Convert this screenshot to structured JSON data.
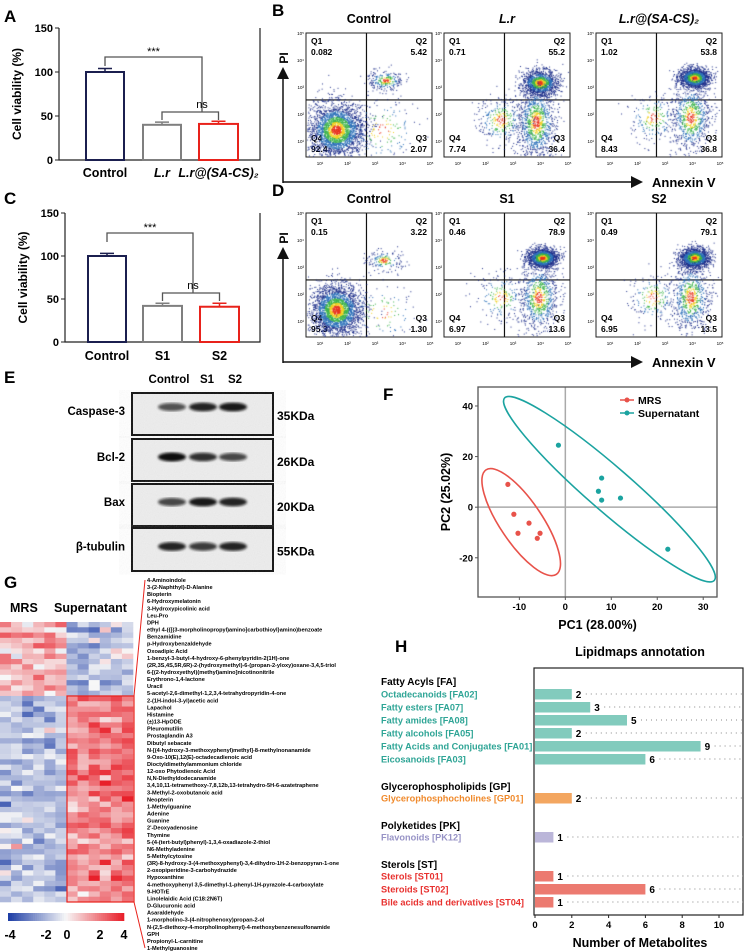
{
  "panel_labels": [
    "A",
    "B",
    "C",
    "D",
    "E",
    "F",
    "G",
    "H"
  ],
  "chart_data": [
    {
      "type": "bar",
      "ylabel": "Cell viability (%)",
      "ylim": [
        0,
        150
      ],
      "yticks": [
        0,
        50,
        100,
        150
      ],
      "categories": [
        "Control",
        "L.r",
        "L.r@(SA-CS)₂"
      ],
      "values": [
        100,
        40,
        41
      ],
      "errors": [
        4,
        3,
        3
      ],
      "colors": [
        "#1b1f4f",
        "#7f7f7f",
        "#e8221b"
      ],
      "significance": [
        "***",
        "ns"
      ]
    },
    {
      "type": "scatter",
      "subtype": "flow-cytometry",
      "xlabel": "Annexin V",
      "ylabel": "PI",
      "axis_ticks": [
        "10¹",
        "10²",
        "10³",
        "10⁴",
        "10⁵"
      ],
      "quadrant_names": [
        "Q1",
        "Q2",
        "Q3",
        "Q4"
      ],
      "samples": [
        {
          "name": "Control",
          "Q1": "0.082",
          "Q2": "5.42",
          "Q3": "2.07",
          "Q4": "92.4"
        },
        {
          "name": "L.r",
          "Q1": "0.71",
          "Q2": "55.2",
          "Q3": "36.4",
          "Q4": "7.74"
        },
        {
          "name": "L.r@(SA-CS)₂",
          "Q1": "1.02",
          "Q2": "53.8",
          "Q3": "36.8",
          "Q4": "8.43"
        }
      ]
    },
    {
      "type": "bar",
      "ylabel": "Cell viability (%)",
      "ylim": [
        0,
        150
      ],
      "yticks": [
        0,
        50,
        100,
        150
      ],
      "categories": [
        "Control",
        "S1",
        "S2"
      ],
      "values": [
        100,
        42,
        41
      ],
      "errors": [
        3,
        3,
        4
      ],
      "colors": [
        "#1b1f4f",
        "#7f7f7f",
        "#e8221b"
      ],
      "significance": [
        "***",
        "ns"
      ]
    },
    {
      "type": "scatter",
      "subtype": "flow-cytometry",
      "xlabel": "Annexin V",
      "ylabel": "PI",
      "axis_ticks": [
        "10¹",
        "10²",
        "10³",
        "10⁴",
        "10⁵"
      ],
      "quadrant_names": [
        "Q1",
        "Q2",
        "Q3",
        "Q4"
      ],
      "samples": [
        {
          "name": "Control",
          "Q1": "0.15",
          "Q2": "3.22",
          "Q3": "1.30",
          "Q4": "95.3"
        },
        {
          "name": "S1",
          "Q1": "0.46",
          "Q2": "78.9",
          "Q3": "13.6",
          "Q4": "6.97"
        },
        {
          "name": "S2",
          "Q1": "0.49",
          "Q2": "79.1",
          "Q3": "13.5",
          "Q4": "6.95"
        }
      ]
    },
    {
      "type": "table",
      "subtype": "western-blot",
      "lanes": [
        "Control",
        "S1",
        "S2"
      ],
      "proteins": [
        {
          "name": "Caspase-3",
          "size": "35KDa",
          "intensity": [
            0.7,
            0.9,
            0.95
          ]
        },
        {
          "name": "Bcl-2",
          "size": "26KDa",
          "intensity": [
            1.0,
            0.85,
            0.75
          ]
        },
        {
          "name": "Bax",
          "size": "20KDa",
          "intensity": [
            0.75,
            0.95,
            0.9
          ]
        },
        {
          "name": "β-tubulin",
          "size": "55KDa",
          "intensity": [
            0.9,
            0.8,
            0.9
          ]
        }
      ]
    },
    {
      "type": "scatter",
      "xlabel": "PC1 (28.00%)",
      "ylabel": "PC2 (25.02%)",
      "xlim": [
        -19,
        33
      ],
      "ylim": [
        -35.5,
        47.5
      ],
      "xticks": [
        "-10",
        "0",
        "10",
        "20",
        "30"
      ],
      "yticks": [
        "-20",
        "0",
        "20",
        "40"
      ],
      "grid": "zero-lines",
      "legend": "top-right",
      "series": [
        {
          "name": "MRS",
          "color": "#e8524a",
          "points": [
            [
              -12.5,
              9
            ],
            [
              -11.2,
              -2.8
            ],
            [
              -7.9,
              -6.3
            ],
            [
              -10.3,
              -10.3
            ],
            [
              -5.5,
              -10.3
            ],
            [
              -6.1,
              -12.3
            ]
          ]
        },
        {
          "name": "Supernatant",
          "color": "#1ba3a0",
          "points": [
            [
              -1.5,
              24.5
            ],
            [
              7.9,
              11.5
            ],
            [
              7.2,
              6.3
            ],
            [
              7.9,
              2.8
            ],
            [
              12,
              3.6
            ],
            [
              22.3,
              -16.6
            ]
          ]
        }
      ]
    },
    {
      "type": "heatmap",
      "groups": [
        "MRS",
        "Supernatant"
      ],
      "columns_per_group": 6,
      "colorbar_ticks": [
        "-4",
        "-2",
        "0",
        "2",
        "4"
      ],
      "colorbar_range": [
        -4,
        4
      ],
      "row_means": [
        [
          1.2,
          -1.4
        ],
        [
          0.8,
          -1.6
        ],
        [
          1.5,
          -1.2
        ],
        [
          1.0,
          -1.0
        ],
        [
          1.3,
          -1.5
        ],
        [
          0.9,
          -1.3
        ],
        [
          1.4,
          -1.1
        ],
        [
          1.1,
          -1.4
        ],
        [
          0.7,
          -1.2
        ],
        [
          1.6,
          -1.0
        ],
        [
          1.2,
          -1.5
        ],
        [
          1.0,
          -1.6
        ],
        [
          1.3,
          -1.3
        ],
        [
          0.9,
          -1.1
        ],
        [
          -1.3,
          1.6
        ],
        [
          -1.2,
          1.9
        ],
        [
          -1.0,
          1.7
        ],
        [
          -1.4,
          2.0
        ],
        [
          -1.1,
          1.8
        ],
        [
          -1.3,
          2.2
        ],
        [
          -1.0,
          1.5
        ],
        [
          -1.2,
          2.1
        ],
        [
          -1.5,
          1.9
        ],
        [
          -1.1,
          1.7
        ],
        [
          -1.3,
          2.3
        ],
        [
          -1.0,
          2.0
        ],
        [
          -1.4,
          1.8
        ],
        [
          -1.2,
          2.4
        ],
        [
          -1.6,
          2.2
        ],
        [
          -1.1,
          1.9
        ],
        [
          -1.3,
          2.1
        ],
        [
          -1.0,
          1.6
        ],
        [
          -1.4,
          2.0
        ],
        [
          -1.2,
          1.8
        ],
        [
          -1.1,
          1.7
        ],
        [
          -1.3,
          1.5
        ],
        [
          -1.0,
          1.9
        ],
        [
          -1.2,
          1.6
        ],
        [
          -1.4,
          1.8
        ],
        [
          -1.1,
          2.0
        ],
        [
          -1.0,
          1.7
        ],
        [
          -1.3,
          1.4
        ],
        [
          -1.2,
          1.9
        ],
        [
          -1.1,
          2.1
        ],
        [
          -1.0,
          1.6
        ],
        [
          -1.2,
          1.8
        ],
        [
          -1.4,
          1.5
        ],
        [
          -1.1,
          1.9
        ],
        [
          -1.3,
          2.2
        ],
        [
          -1.0,
          1.7
        ],
        [
          -1.2,
          1.5
        ],
        [
          -1.1,
          1.8
        ],
        [
          -1.3,
          1.6
        ]
      ],
      "metabolites": [
        "4-Aminoindole",
        "3-(2-Naphthyl)-D-Alanine",
        "Biopterin",
        "6-Hydroxymelatonin",
        "3-Hydroxypicolinic acid",
        "Leu-Pro",
        "DPH",
        "ethyl 4-({[(3-morpholinopropyl)amino]carbothioyl}amino)benzoate",
        "Benzamidine",
        "p-Hydroxybenzaldehyde",
        "Oxoadipic Acid",
        "1-benzyl-3-butyl-4-hydroxy-6-phenylpyridin-2(1H)-one",
        "(2R,3S,4S,5R,6R)-2-(hydroxymethyl)-6-(propan-2-yloxy)oxane-3,4,5-triol",
        "6-[(2-hydroxyethyl)(methyl)amino]nicotinonitrile",
        "Erythrono-1,4-lactone",
        "Uracil",
        "5-acetyl-2,6-dimethyl-1,2,3,4-tetrahydropyridin-4-one",
        "2-(1H-indol-3-yl)acetic acid",
        "Lapachol",
        "Histamine",
        "(±)13-HpODE",
        "Pleuromutilin",
        "Prostaglandin A3",
        "Dibutyl sebacate",
        "N-[(4-hydroxy-3-methoxyphenyl)methyl]-8-methylnonanamide",
        "9-Oxo-10(E),12(E)-octadecadienoic acid",
        "Dioctyldimethylammonium chloride",
        "12-oxo Phytodienoic Acid",
        "N,N-Diethyldodecanamide",
        "3,4,10,11-tetramethoxy-7,8,12b,13-tetrahydro-5H-6-azatetraphene",
        "3-Methyl-2-oxobutanoic acid",
        "Neopterin",
        "1-Methylguanine",
        "Adenine",
        "Guanine",
        "2'-Deoxyadenosine",
        "Thymine",
        "5-(4-(tert-butyl)phenyl)-1,3,4-oxadiazole-2-thiol",
        "N6-Methyladenine",
        "5-Methylcytosine",
        "(3R)-8-hydroxy-3-(4-methoxyphenyl)-3,4-dihydro-1H-2-benzopyran-1-one",
        "2-oxopiperidine-3-carbohydrazide",
        "Hypoxanthine",
        "4-methoxyphenyl 3,5-dimethyl-1-phenyl-1H-pyrazole-4-carboxylate",
        "9-HOTrE",
        "Linolelaidic Acid (C18:2N6T)",
        "D-Glucuronic acid",
        "Asaraldehyde",
        "1-morpholino-3-(4-nitrophenoxy)propan-2-ol",
        "N-(2,5-diethoxy-4-morpholinophenyl)-4-methoxybenzenesulfonamide",
        "GPH",
        "Propionyl-L-carnitine",
        "1-Methylguanosine"
      ]
    },
    {
      "type": "bar",
      "orientation": "horizontal",
      "title": "Lipidmaps annotation",
      "xlabel": "Number of Metabolites",
      "xlim": [
        0,
        11.4
      ],
      "xticks": [
        "0",
        "2",
        "4",
        "6",
        "8",
        "10"
      ],
      "groups": [
        {
          "name": "Fatty Acyls [FA]",
          "color": "#2fa596",
          "bar_color": "#82cbbd",
          "items": [
            {
              "label": "Octadecanoids [FA02]",
              "value": 2
            },
            {
              "label": "Fatty esters [FA07]",
              "value": 3
            },
            {
              "label": "Fatty amides [FA08]",
              "value": 5
            },
            {
              "label": "Fatty alcohols [FA05]",
              "value": 2
            },
            {
              "label": "Fatty Acids and Conjugates [FA01]",
              "value": 9
            },
            {
              "label": "Eicosanoids [FA03]",
              "value": 6
            }
          ]
        },
        {
          "name": "Glycerophospholipids [GP]",
          "color": "#f08a2c",
          "bar_color": "#f3a660",
          "items": [
            {
              "label": "Glycerophosphocholines [GP01]",
              "value": 2
            }
          ]
        },
        {
          "name": "Polyketides [PK]",
          "color": "#9793c6",
          "bar_color": "#bbb6d9",
          "items": [
            {
              "label": "Flavonoids [PK12]",
              "value": 1
            }
          ]
        },
        {
          "name": "Sterols [ST]",
          "color": "#e8312f",
          "bar_color": "#ec7a70",
          "items": [
            {
              "label": "Sterols [ST01]",
              "value": 1
            },
            {
              "label": "Steroids [ST02]",
              "value": 6
            },
            {
              "label": "Bile acids and derivatives [ST04]",
              "value": 1
            }
          ]
        }
      ]
    }
  ]
}
